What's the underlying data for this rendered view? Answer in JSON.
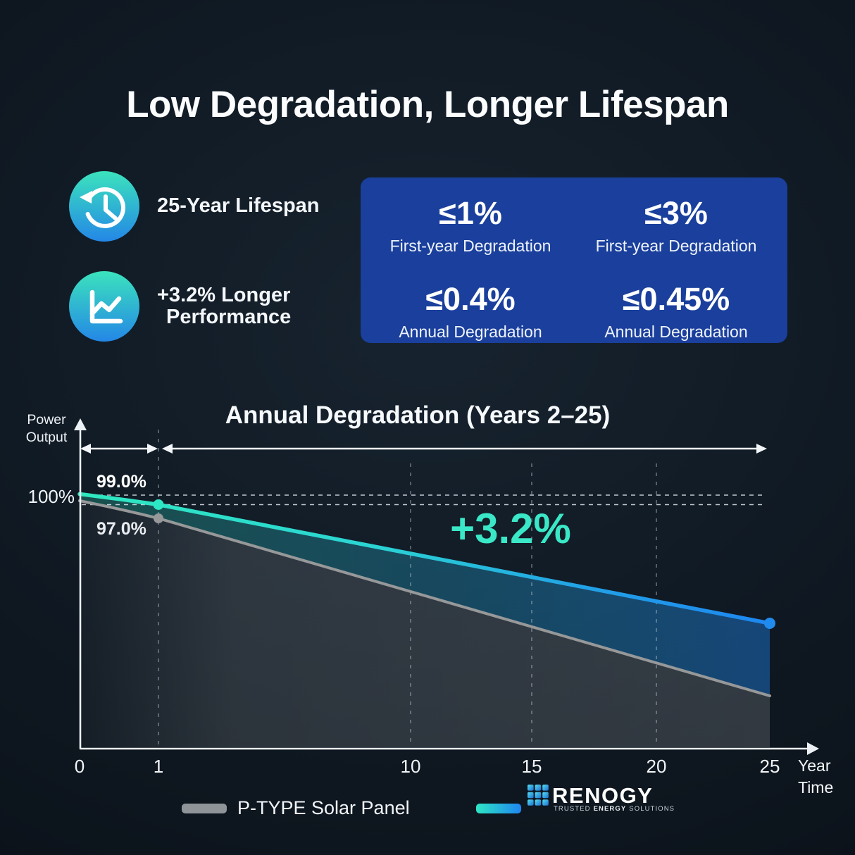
{
  "title": "Low Degradation, Longer Lifespan",
  "features": [
    {
      "icon": "history-clock-icon",
      "lines": [
        "25-Year Lifespan"
      ]
    },
    {
      "icon": "line-chart-icon",
      "lines": [
        "+3.2% Longer",
        "Performance"
      ]
    }
  ],
  "stats_panel": {
    "background": "#1A3F9C",
    "items": [
      {
        "value": "≤1%",
        "label": "First-year Degradation"
      },
      {
        "value": "≤3%",
        "label": "First-year Degradation"
      },
      {
        "value": "≤0.4%",
        "label": "Annual Degradation"
      },
      {
        "value": "≤0.45%",
        "label": "Annual Degradation"
      }
    ]
  },
  "chart": {
    "title": "Annual Degradation (Years 2–25)",
    "y_axis_label_line1": "Power",
    "y_axis_label_line2": "Output",
    "x_axis_label_line1": "Year",
    "x_axis_label_line2": "Time",
    "y_tick_100": "100%",
    "x_ticks": [
      "0",
      "1",
      "10",
      "15",
      "20",
      "25"
    ],
    "label_renogy_year1": "99.0%",
    "label_ptype_year1": "97.0%",
    "gap_label": "+3.2%"
  },
  "chart_data": {
    "type": "area",
    "title": "Annual Degradation (Years 2–25)",
    "xlabel": "Year Time",
    "ylabel": "Power Output",
    "x_ticks": [
      0,
      1,
      10,
      15,
      20,
      25
    ],
    "grid": "dashed verticals at years 1, 10, 15, 20; dashed horizontals at 100% and 99%",
    "series": [
      {
        "name": "RENOGY",
        "color": "teal-to-blue gradient (#2EE6C4 → #1E86F0)",
        "first_year_degradation": "≤1%",
        "annual_degradation": "≤0.4%",
        "points": [
          [
            0,
            100
          ],
          [
            1,
            99.0
          ],
          [
            25,
            89.4
          ]
        ]
      },
      {
        "name": "P-TYPE Solar Panel",
        "color": "#969899",
        "first_year_degradation": "≤3%",
        "annual_degradation": "≤0.45%",
        "points": [
          [
            0,
            100
          ],
          [
            1,
            97.0
          ],
          [
            25,
            86.2
          ]
        ]
      }
    ],
    "annotations": [
      {
        "text": "99.0%",
        "at": "RENOGY line, year 1"
      },
      {
        "text": "97.0%",
        "at": "P-TYPE line, year 1"
      },
      {
        "text": "+3.2%",
        "at": "gap between lines, years 2–25"
      },
      {
        "text": "100%",
        "at": "y-axis"
      }
    ],
    "legend_position": "bottom"
  },
  "legend": {
    "ptype_label": "P-TYPE Solar Panel"
  },
  "brand": {
    "name": "RENOGY",
    "tagline_word1": "TRUSTED",
    "tagline_word2": "ENERGY",
    "tagline_word3": "SOLUTIONS"
  },
  "colors": {
    "accent_teal": "#2EE6C4",
    "accent_blue": "#1E86F0",
    "panel_blue": "#1A3F9C",
    "gray_line": "#969899",
    "background": "#101A24"
  }
}
